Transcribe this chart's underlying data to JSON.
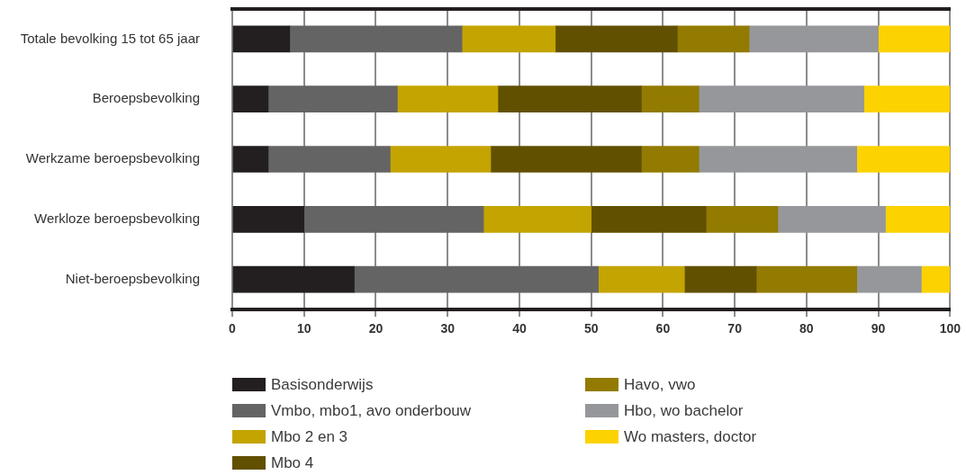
{
  "chart_data": {
    "type": "bar",
    "orientation": "horizontal",
    "stacked": true,
    "categories": [
      "Totale bevolking 15 tot 65 jaar",
      "Beroepsbevolking",
      "Werkzame beroepsbevolking",
      "Werkloze beroepsbevolking",
      "Niet-beroepsbevolking"
    ],
    "series": [
      {
        "name": "Basisonderwijs",
        "color": "#231f20",
        "values": [
          8,
          5,
          5,
          10,
          17
        ]
      },
      {
        "name": "Vmbo, mbo1, avo onderbouw",
        "color": "#646464",
        "values": [
          24,
          18,
          17,
          25,
          34
        ]
      },
      {
        "name": "Mbo 2 en 3",
        "color": "#c4a400",
        "values": [
          13,
          14,
          14,
          15,
          12
        ]
      },
      {
        "name": "Mbo 4",
        "color": "#615000",
        "values": [
          17,
          20,
          21,
          16,
          10
        ]
      },
      {
        "name": "Havo, vwo",
        "color": "#927b00",
        "values": [
          10,
          8,
          8,
          10,
          14
        ]
      },
      {
        "name": "Hbo, wo bachelor",
        "color": "#96979b",
        "values": [
          18,
          23,
          22,
          15,
          9
        ]
      },
      {
        "name": "Wo masters, doctor",
        "color": "#fcd200",
        "values": [
          10,
          12,
          13,
          9,
          4
        ]
      }
    ],
    "xlim": [
      0,
      100
    ],
    "xticks": [
      0,
      10,
      20,
      30,
      40,
      50,
      60,
      70,
      80,
      90,
      100
    ],
    "grid": "x",
    "legend": "bottom"
  }
}
